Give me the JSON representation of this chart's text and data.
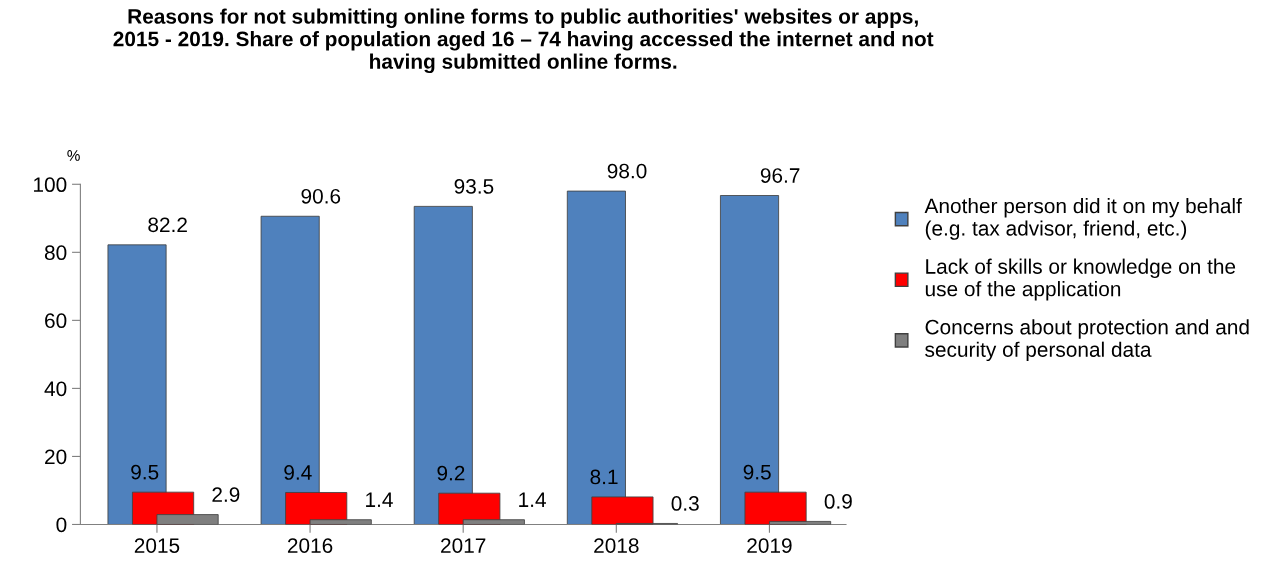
{
  "chart_data": {
    "type": "bar",
    "title": "Reasons for not submitting online forms to public authorities' websites or apps,\n2015 - 2019. Share of population aged 16 – 74 having accessed the internet and not\nhaving submitted online forms.",
    "ylabel": "%",
    "categories": [
      "2015",
      "2016",
      "2017",
      "2018",
      "2019"
    ],
    "series": [
      {
        "name": "Another person did it on my behalf\n(e.g. tax advisor, friend, etc.)",
        "color": "#4f81bd",
        "values": [
          82.2,
          90.6,
          93.5,
          98.0,
          96.7
        ],
        "value_labels": [
          "82.2",
          "90.6",
          "93.5",
          "98.0",
          "96.7"
        ]
      },
      {
        "name": "Lack of skills or knowledge on the\nuse of the application",
        "color": "#ff0000",
        "values": [
          9.5,
          9.4,
          9.2,
          8.1,
          9.5
        ],
        "value_labels": [
          "9.5",
          "9.4",
          "9.2",
          "8.1",
          "9.5"
        ]
      },
      {
        "name": "Concerns about protection and and\nsecurity of personal data",
        "color": "#7f7f7f",
        "values": [
          2.9,
          1.4,
          1.4,
          0.3,
          0.9
        ],
        "value_labels": [
          "2.9",
          "1.4",
          "1.4",
          "0.3",
          "0.9"
        ]
      }
    ],
    "ylim": [
      0,
      100
    ],
    "yticks": [
      0,
      20,
      40,
      60,
      80,
      100
    ],
    "grid": false,
    "legend": "right"
  }
}
